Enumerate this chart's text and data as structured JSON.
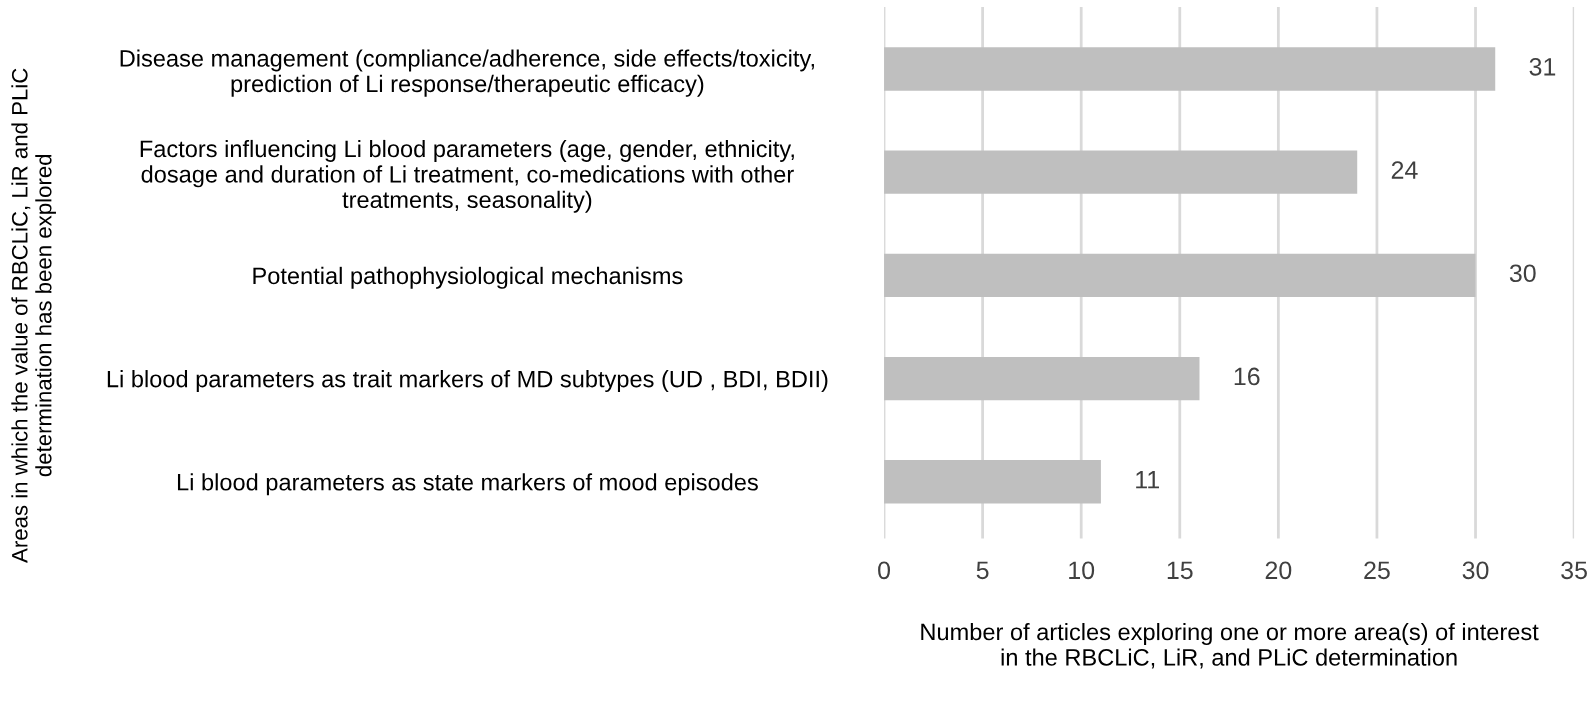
{
  "chart_data": {
    "type": "bar",
    "orientation": "horizontal",
    "categories": [
      "Disease management (compliance/adherence, side effects/toxicity,\nprediction of Li response/therapeutic efficacy)",
      "Factors influencing Li blood parameters (age, gender, ethnicity,\ndosage and duration of Li treatment, co-medications with other\ntreatments, seasonality)",
      "Potential pathophysiological mechanisms",
      "Li blood parameters as trait markers of MD subtypes (UD , BDI, BDII)",
      "Li blood parameters as state markers of mood episodes"
    ],
    "values": [
      31,
      24,
      30,
      16,
      11
    ],
    "color": "#bfbfbf",
    "data_labels": true,
    "xlim": [
      0,
      35
    ],
    "xticks": [
      0,
      5,
      10,
      15,
      20,
      25,
      30,
      35
    ],
    "grid": "x",
    "xlabel": "Number of articles exploring one or more area(s) of interest\nin the RBCLiC, LiR, and PLiC determination",
    "ylabel": "Areas in which the value of RBCLiC, LiR and PLiC\ndetermination has been explored"
  }
}
